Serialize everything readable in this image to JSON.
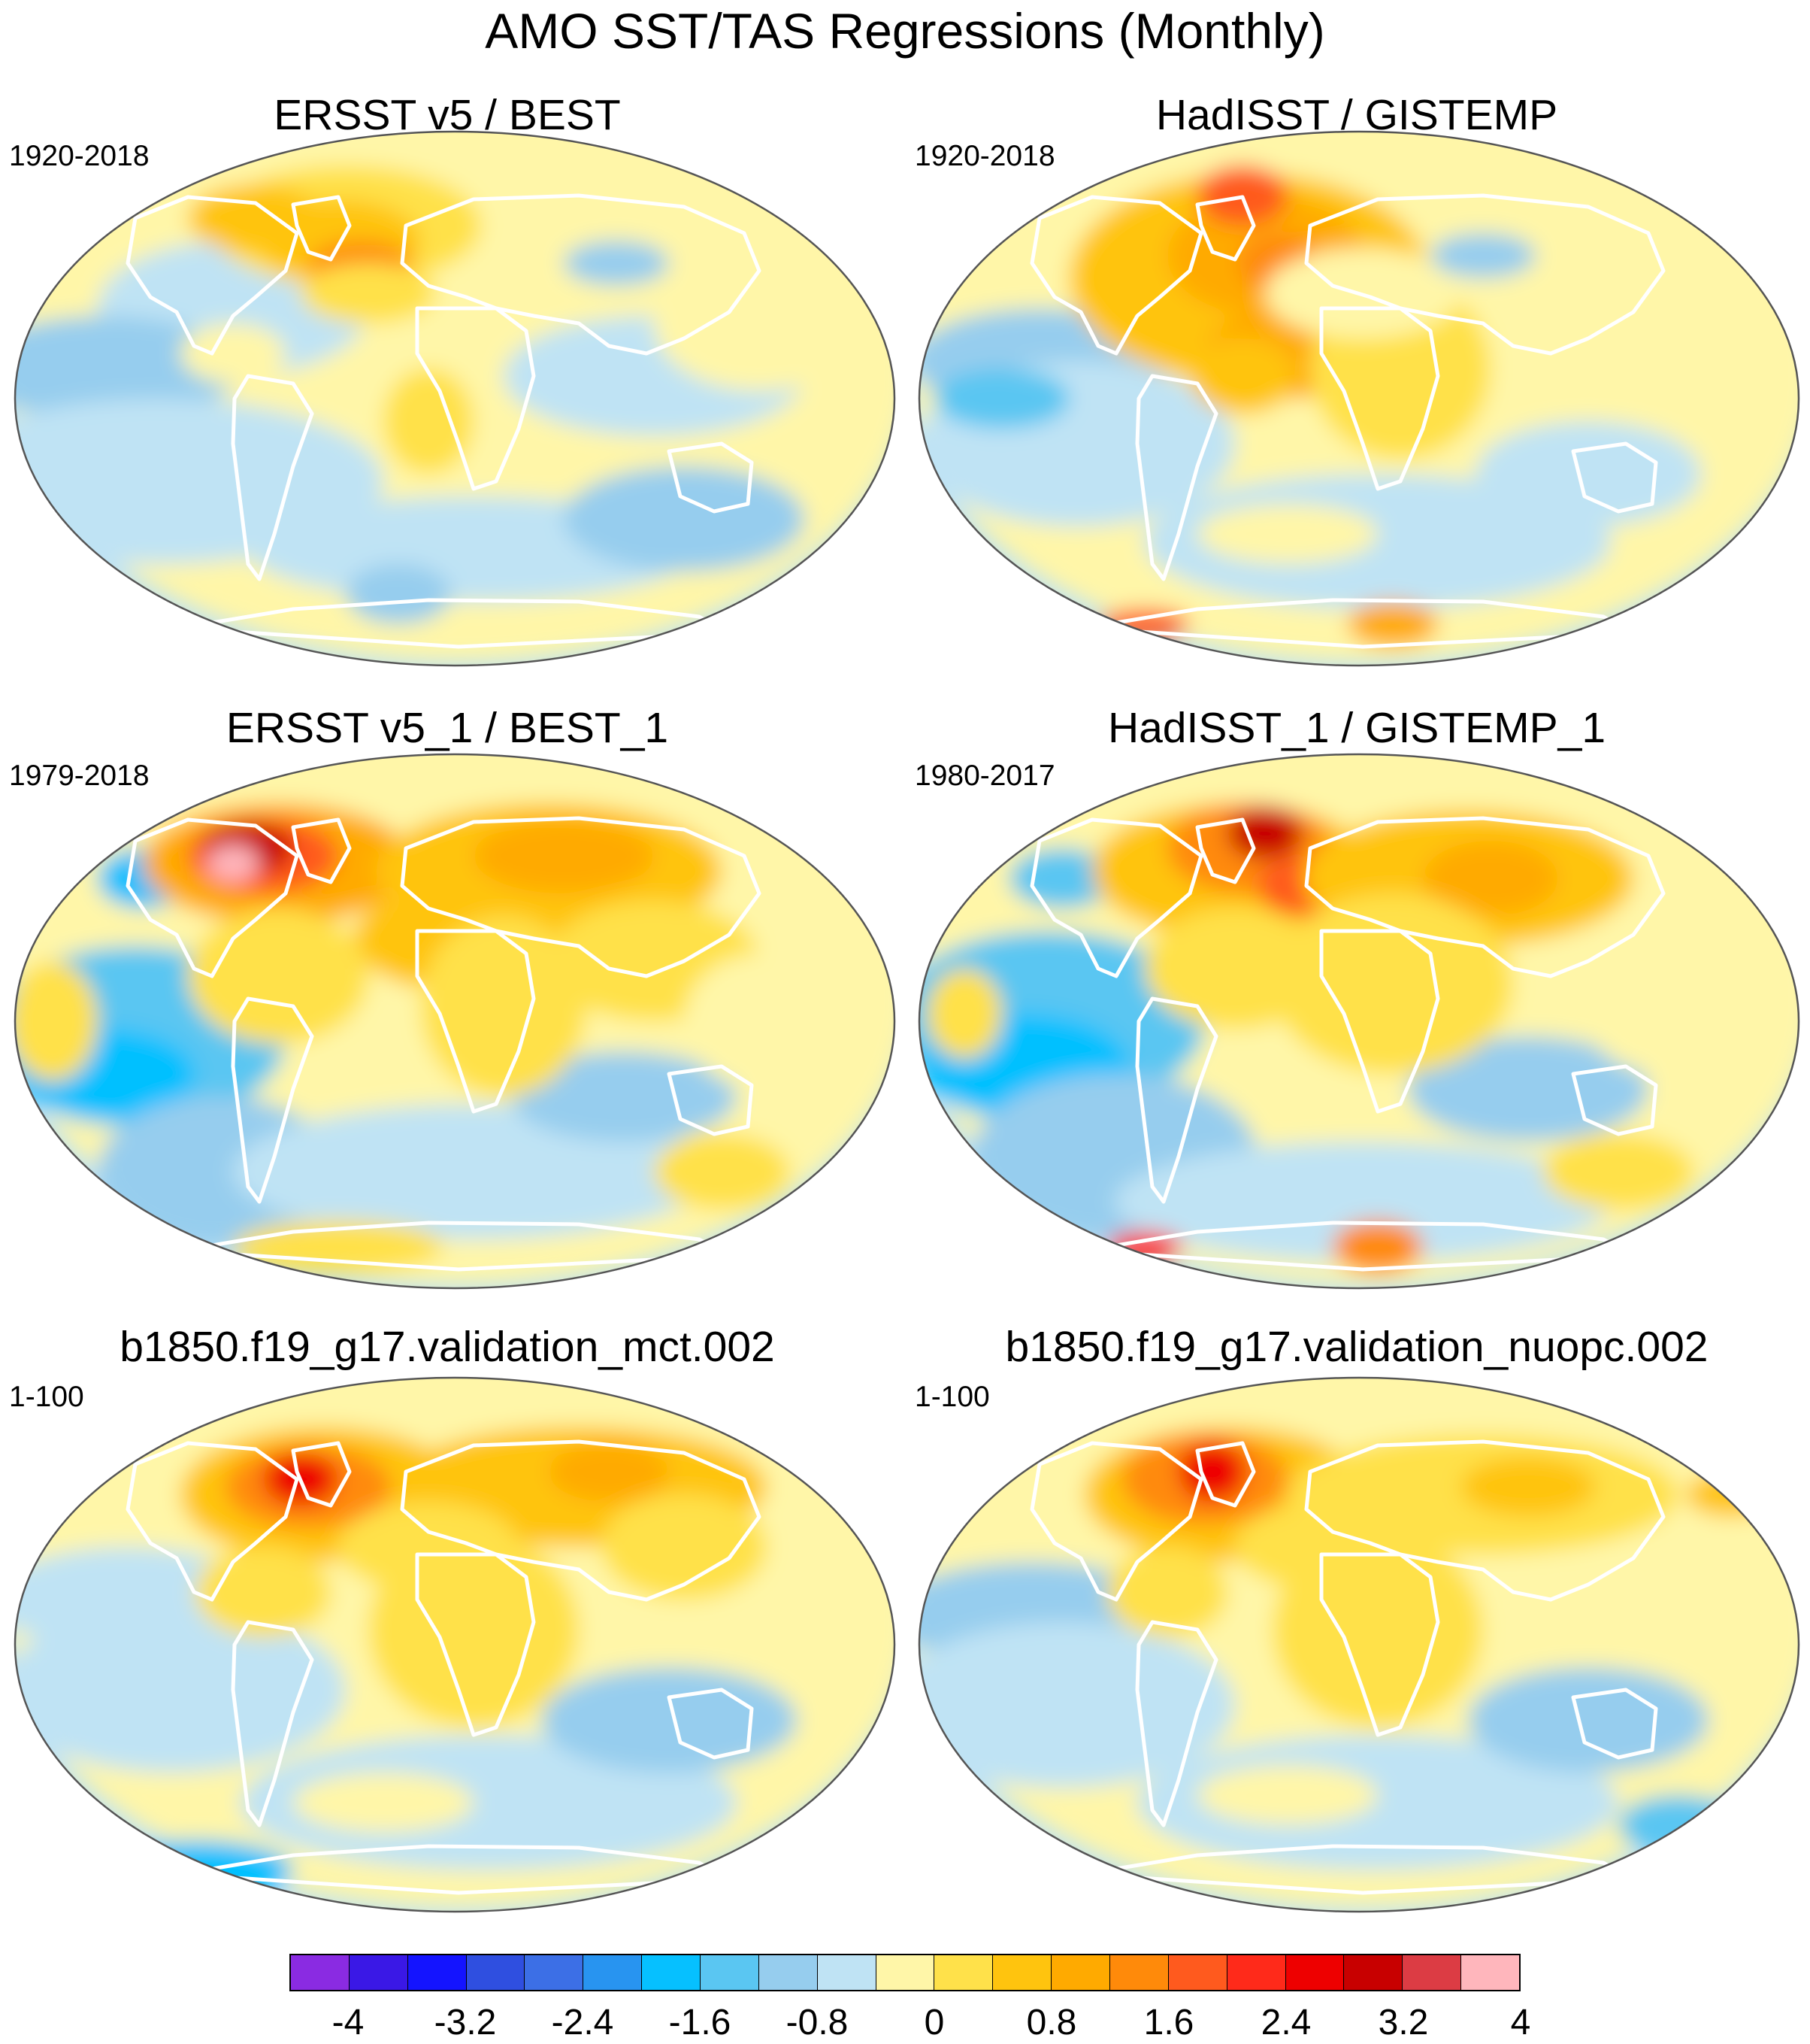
{
  "title": "AMO SST/TAS Regressions (Monthly)",
  "panels": [
    {
      "title": "ERSST v5 / BEST",
      "period": "1920-2018"
    },
    {
      "title": "HadISST / GISTEMP",
      "period": "1920-2018"
    },
    {
      "title": "ERSST v5_1 / BEST_1",
      "period": "1979-2018"
    },
    {
      "title": "HadISST_1 / GISTEMP_1",
      "period": "1980-2017"
    },
    {
      "title": "b1850.f19_g17.validation_mct.002",
      "period": "1-100"
    },
    {
      "title": "b1850.f19_g17.validation_nuopc.002",
      "period": "1-100"
    }
  ],
  "colorbar": {
    "labels": [
      "-4",
      "-3.2",
      "-2.4",
      "-1.6",
      "-0.8",
      "0",
      "0.8",
      "1.6",
      "2.4",
      "3.2",
      "4"
    ],
    "colors": [
      "#8a2be2",
      "#3a18e6",
      "#1414ff",
      "#2f4fe0",
      "#3c6fe6",
      "#2894f0",
      "#06c0ff",
      "#5ac6f2",
      "#96cdee",
      "#bfe3f4",
      "#fff6a8",
      "#ffe14a",
      "#ffc40e",
      "#ffaa00",
      "#ff8a0a",
      "#ff5a1e",
      "#ff2a1a",
      "#ee0000",
      "#c80000",
      "#dc3c44",
      "#ffb6bc"
    ]
  },
  "map_colors": {
    "ocean_background": "#bfe3f4",
    "land_outline": "#ffffff",
    "frame": "#555555"
  }
}
